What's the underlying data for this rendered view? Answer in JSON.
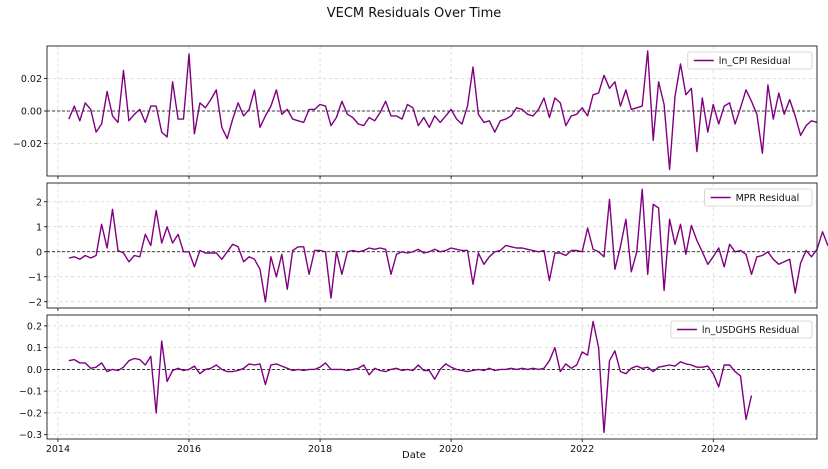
{
  "title": "VECM Residuals Over Time",
  "chart_data": [
    {
      "type": "line",
      "name": "ln_CPI",
      "x_start": "2014-03",
      "legend": "ln_CPI Residual",
      "legend_position": "top-right",
      "color": "#800080",
      "ylim": [
        -0.04,
        0.04
      ],
      "yticks": [
        -0.02,
        0.0,
        0.02
      ],
      "ytick_labels": [
        "−0.02",
        "0.00",
        "0.02"
      ],
      "grid": true,
      "zero_line": true,
      "values": [
        -0.005,
        0.003,
        -0.006,
        0.005,
        0.001,
        -0.013,
        -0.008,
        0.012,
        -0.003,
        -0.007,
        0.025,
        -0.006,
        -0.002,
        0.001,
        -0.007,
        0.003,
        0.003,
        -0.013,
        -0.016,
        0.018,
        -0.005,
        -0.005,
        0.035,
        -0.014,
        0.005,
        0.002,
        0.007,
        0.013,
        -0.01,
        -0.017,
        -0.005,
        0.005,
        -0.003,
        0.001,
        0.013,
        -0.01,
        -0.003,
        0.003,
        0.013,
        -0.002,
        0.001,
        -0.005,
        -0.006,
        -0.007,
        0.001,
        0.001,
        0.004,
        0.003,
        -0.009,
        -0.004,
        0.006,
        -0.002,
        -0.004,
        -0.008,
        -0.009,
        -0.004,
        -0.006,
        -0.001,
        0.006,
        -0.003,
        -0.003,
        -0.005,
        0.004,
        0.002,
        -0.009,
        -0.004,
        -0.01,
        -0.003,
        -0.007,
        -0.003,
        0.001,
        -0.005,
        -0.008,
        0.003,
        0.027,
        -0.002,
        -0.007,
        -0.006,
        -0.013,
        -0.006,
        -0.005,
        -0.003,
        0.002,
        0.001,
        -0.002,
        -0.003,
        0.001,
        0.008,
        -0.004,
        0.008,
        0.005,
        -0.009,
        -0.003,
        -0.002,
        0.002,
        -0.003,
        0.01,
        0.011,
        0.022,
        0.014,
        0.018,
        0.003,
        0.013,
        0.001,
        0.002,
        0.003,
        0.037,
        -0.018,
        0.018,
        0.004,
        -0.036,
        0.009,
        0.029,
        0.01,
        0.014,
        -0.025,
        0.008,
        -0.013,
        0.004,
        -0.008,
        0.003,
        0.005,
        -0.008,
        0.002,
        0.013,
        0.006,
        -0.002,
        -0.026,
        0.016,
        -0.005,
        0.011,
        -0.002,
        0.007,
        -0.003,
        -0.015,
        -0.009,
        -0.006,
        -0.007
      ]
    },
    {
      "type": "line",
      "name": "MPR",
      "x_start": "2014-03",
      "legend": "MPR Residual",
      "legend_position": "top-right",
      "color": "#800080",
      "ylim": [
        -2.25,
        2.75
      ],
      "yticks": [
        -2,
        -1,
        0,
        1,
        2
      ],
      "ytick_labels": [
        "−2",
        "−1",
        "0",
        "1",
        "2"
      ],
      "grid": true,
      "zero_line": true,
      "values": [
        -0.25,
        -0.2,
        -0.3,
        -0.15,
        -0.25,
        -0.15,
        1.1,
        0.15,
        1.7,
        0.05,
        -0.05,
        -0.4,
        -0.15,
        -0.2,
        0.7,
        0.25,
        1.65,
        0.35,
        1.0,
        0.35,
        0.7,
        0.0,
        0.0,
        -0.6,
        0.05,
        -0.05,
        -0.05,
        -0.05,
        -0.3,
        0.0,
        0.3,
        0.2,
        -0.4,
        -0.2,
        -0.3,
        -0.7,
        -2.0,
        -0.2,
        -1.0,
        -0.1,
        -1.5,
        0.05,
        0.2,
        0.2,
        -0.9,
        0.05,
        0.05,
        0.0,
        -1.85,
        0.0,
        -0.9,
        0.0,
        0.05,
        0.0,
        0.05,
        0.15,
        0.1,
        0.15,
        0.1,
        -0.9,
        -0.1,
        0.0,
        -0.05,
        0.0,
        0.1,
        -0.05,
        0.0,
        0.1,
        0.0,
        0.05,
        0.15,
        0.1,
        0.05,
        0.05,
        -1.3,
        -0.05,
        -0.5,
        -0.2,
        0.0,
        0.05,
        0.25,
        0.2,
        0.15,
        0.15,
        0.1,
        0.05,
        0.0,
        0.05,
        -1.15,
        -0.05,
        -0.05,
        -0.15,
        0.05,
        0.05,
        0.0,
        0.95,
        0.1,
        0.0,
        -0.2,
        2.1,
        -0.7,
        0.2,
        1.3,
        -0.8,
        0.0,
        2.5,
        -0.9,
        1.9,
        1.75,
        -1.55,
        1.3,
        0.3,
        1.1,
        -0.1,
        1.05,
        0.45,
        0.0,
        -0.5,
        -0.2,
        0.15,
        -0.6,
        0.3,
        0.0,
        0.05,
        -0.1,
        -0.9,
        -0.2,
        -0.15,
        0.0,
        -0.3,
        -0.5,
        -0.4,
        -0.3,
        -1.65,
        -0.45,
        0.05,
        -0.2,
        0.1,
        0.8,
        0.25,
        0.2,
        0.75
      ]
    },
    {
      "type": "line",
      "name": "ln_USDGHS",
      "x_start": "2014-03",
      "legend": "ln_USDGHS Residual",
      "legend_position": "top-right",
      "color": "#800080",
      "ylim": [
        -0.32,
        0.25
      ],
      "yticks": [
        -0.3,
        -0.2,
        -0.1,
        0.0,
        0.1,
        0.2
      ],
      "ytick_labels": [
        "−0.3",
        "−0.2",
        "−0.1",
        "0.0",
        "0.1",
        "0.2"
      ],
      "grid": true,
      "zero_line": true,
      "values": [
        0.04,
        0.045,
        0.03,
        0.03,
        0.005,
        0.01,
        0.03,
        -0.01,
        0.0,
        -0.005,
        0.01,
        0.04,
        0.05,
        0.045,
        0.02,
        0.06,
        -0.2,
        0.13,
        -0.055,
        -0.005,
        0.005,
        -0.005,
        0.0,
        0.015,
        -0.02,
        0.0,
        0.005,
        0.02,
        0.0,
        -0.01,
        -0.01,
        -0.005,
        0.005,
        0.025,
        0.02,
        0.025,
        -0.07,
        0.02,
        0.025,
        0.015,
        0.005,
        -0.005,
        0.0,
        -0.005,
        0.0,
        0.0,
        0.01,
        0.03,
        0.0,
        0.0,
        0.0,
        -0.005,
        0.0,
        0.005,
        0.02,
        -0.025,
        0.005,
        -0.005,
        -0.01,
        0.0,
        0.005,
        -0.005,
        0.0,
        -0.005,
        0.02,
        -0.005,
        -0.005,
        -0.045,
        0.0,
        0.025,
        0.01,
        0.0,
        -0.005,
        -0.01,
        -0.005,
        0.0,
        -0.005,
        0.005,
        -0.005,
        0.0,
        0.0,
        0.005,
        0.0,
        0.005,
        0.0,
        0.005,
        0.0,
        0.005,
        0.04,
        0.1,
        -0.01,
        0.025,
        0.005,
        0.02,
        0.08,
        0.065,
        0.22,
        0.1,
        -0.29,
        0.04,
        0.085,
        -0.01,
        -0.02,
        0.005,
        0.015,
        0.005,
        0.01,
        -0.01,
        0.01,
        0.015,
        0.02,
        0.015,
        0.035,
        0.025,
        0.02,
        0.01,
        0.01,
        0.015,
        -0.02,
        -0.08,
        0.02,
        0.02,
        -0.01,
        -0.03,
        -0.23,
        -0.12
      ]
    }
  ],
  "x_axis": {
    "label": "Date",
    "range": [
      "2013-11",
      "2025-08"
    ],
    "ticks": [
      "2014",
      "2016",
      "2018",
      "2020",
      "2022",
      "2024"
    ]
  }
}
